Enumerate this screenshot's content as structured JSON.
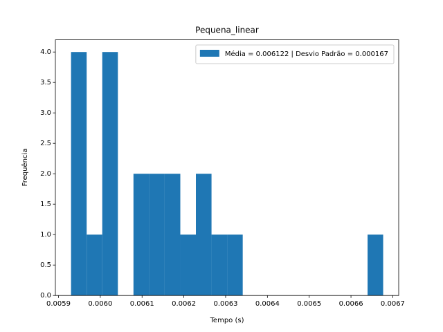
{
  "chart_data": {
    "type": "histogram",
    "title": "Pequena_linear",
    "xlabel": "Tempo (s)",
    "ylabel": "Frequência",
    "label": "Média = 0.006122 | Desvio Padrão = 0.000167",
    "color": "#1f77b4",
    "bins": [
      0.00593,
      0.0059674,
      0.0060047,
      0.0060421,
      0.0060794,
      0.0061168,
      0.0061541,
      0.0061915,
      0.0062288,
      0.0062662,
      0.0063035,
      0.0063409,
      0.0063782,
      0.0064156,
      0.0064529,
      0.0064903,
      0.0065276,
      0.006565,
      0.0066023,
      0.0066397,
      0.006677
    ],
    "counts": [
      4,
      1,
      4,
      0,
      2,
      2,
      2,
      1,
      2,
      1,
      1,
      0,
      0,
      0,
      0,
      0,
      0,
      0,
      0,
      1
    ],
    "xlim": [
      0.0058925,
      0.0067142
    ],
    "ylim": [
      0,
      4.2
    ],
    "xticks": [
      0.0059,
      0.006,
      0.0061,
      0.0062,
      0.0063,
      0.0064,
      0.0065,
      0.0066,
      0.0067
    ],
    "xtick_labels": [
      "0.0059",
      "0.0060",
      "0.0061",
      "0.0062",
      "0.0063",
      "0.0064",
      "0.0065",
      "0.0066",
      "0.0067"
    ],
    "yticks": [
      {
        "value": 0,
        "label": "0.0"
      },
      {
        "value": 0.5,
        "label": "0.5"
      },
      {
        "value": 1,
        "label": "1.0"
      },
      {
        "value": 1.5,
        "label": "1.5"
      },
      {
        "value": 2,
        "label": "2.0"
      },
      {
        "value": 2.5,
        "label": "2.5"
      },
      {
        "value": 3,
        "label": "3.0"
      },
      {
        "value": 3.5,
        "label": "3.5"
      },
      {
        "value": 4,
        "label": "4.0"
      }
    ],
    "legend": "upper right"
  }
}
